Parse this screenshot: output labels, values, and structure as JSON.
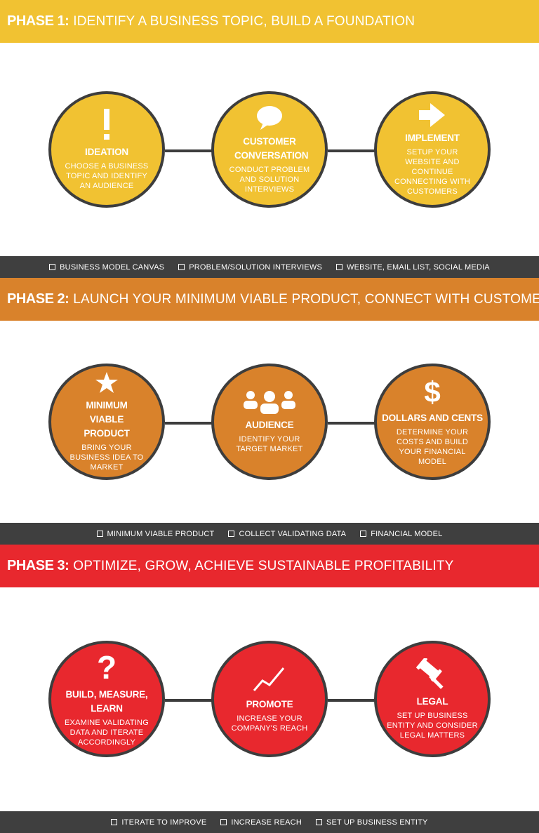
{
  "phases": [
    {
      "label": "PHASE 1:",
      "title": "IDENTIFY A BUSINESS TOPIC, BUILD A FOUNDATION",
      "color": "#f1c232",
      "steps": [
        {
          "icon": "exclamation-icon",
          "title": "IDEATION",
          "desc": "CHOOSE A BUSINESS TOPIC AND IDENTIFY AN AUDIENCE"
        },
        {
          "icon": "speech-bubble-icon",
          "title": "CUSTOMER CONVERSATION",
          "desc": "CONDUCT PROBLEM AND SOLUTION INTERVIEWS"
        },
        {
          "icon": "arrow-right-icon",
          "title": "IMPLEMENT",
          "desc": "SETUP YOUR WEBSITE AND CONTINUE CONNECTING WITH CUSTOMERS"
        }
      ],
      "resources": [
        "BUSINESS MODEL CANVAS",
        "PROBLEM/SOLUTION INTERVIEWS",
        "WEBSITE, EMAIL LIST, SOCIAL MEDIA"
      ]
    },
    {
      "label": "PHASE 2:",
      "title": "LAUNCH YOUR MINIMUM VIABLE PRODUCT, CONNECT WITH CUSTOMERS",
      "color": "#d9822b",
      "steps": [
        {
          "icon": "star-icon",
          "title": "MINIMUM VIABLE PRODUCT",
          "desc": "BRING YOUR BUSINESS IDEA TO MARKET"
        },
        {
          "icon": "people-icon",
          "title": "AUDIENCE",
          "desc": "IDENTIFY YOUR TARGET MARKET"
        },
        {
          "icon": "dollar-icon",
          "title": "DOLLARS AND CENTS",
          "desc": "DETERMINE YOUR COSTS AND BUILD YOUR FINANCIAL MODEL"
        }
      ],
      "resources": [
        "MINIMUM VIABLE PRODUCT",
        "COLLECT VALIDATING DATA",
        "FINANCIAL MODEL"
      ]
    },
    {
      "label": "PHASE 3:",
      "title": "OPTIMIZE, GROW, ACHIEVE SUSTAINABLE PROFITABILITY",
      "color": "#e8282e",
      "steps": [
        {
          "icon": "question-mark-icon",
          "title": "BUILD, MEASURE, LEARN",
          "desc": "EXAMINE VALIDATING DATA AND ITERATE ACCORDINGLY"
        },
        {
          "icon": "trend-line-icon",
          "title": "PROMOTE",
          "desc": "INCREASE YOUR COMPANY'S REACH"
        },
        {
          "icon": "gavel-icon",
          "title": "LEGAL",
          "desc": "SET UP BUSINESS ENTITY AND CONSIDER LEGAL MATTERS"
        }
      ],
      "resources": [
        "ITERATE TO IMPROVE",
        "INCREASE REACH",
        "SET UP BUSINESS ENTITY"
      ]
    }
  ]
}
